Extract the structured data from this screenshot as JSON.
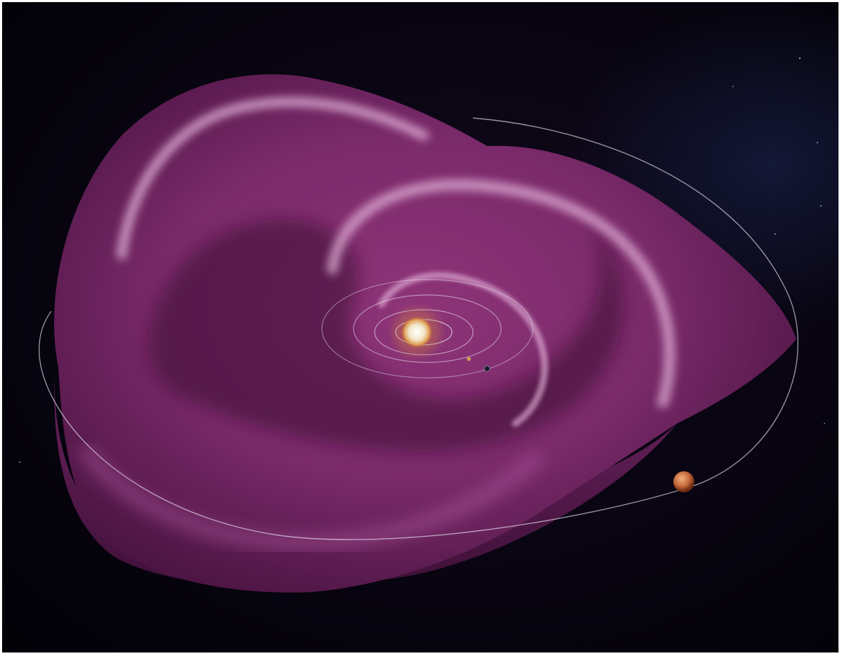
{
  "image": {
    "subject": "heliospheric-current-sheet-illustration",
    "colors": {
      "background": "#05030c",
      "sheet_main": "#7a2a6a",
      "sheet_light": "#b55fa6",
      "sheet_highlight": "#e7b7dd",
      "sheet_shadow": "#3a0d33",
      "sun": "#f2e6c9",
      "sun_corona": "#d98a3a",
      "orbit": "#e8e0f0",
      "planet": "#c56a3a"
    }
  }
}
